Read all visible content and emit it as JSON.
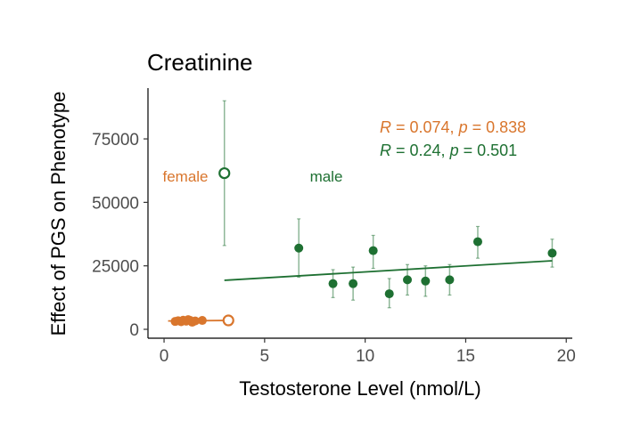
{
  "chart_data": {
    "type": "scatter",
    "title": "Creatinine",
    "xlabel": "Testosterone Level (nmol/L)",
    "ylabel": "Effect of PGS on Phenotype",
    "xlim": [
      -0.8,
      20.3
    ],
    "ylim": [
      -3500,
      95000
    ],
    "x_ticks": [
      0,
      5,
      10,
      15,
      20
    ],
    "y_ticks": [
      0,
      25000,
      50000,
      75000
    ],
    "grid": false,
    "colors": {
      "female": "#d9762d",
      "male": "#1e7032"
    },
    "series": [
      {
        "name": "female",
        "color": "#d9762d",
        "points": [
          {
            "x": 0.55,
            "y": 3100,
            "lo": 2600,
            "hi": 3600
          },
          {
            "x": 0.7,
            "y": 3400,
            "lo": 2900,
            "hi": 3900
          },
          {
            "x": 0.85,
            "y": 3000,
            "lo": 2500,
            "hi": 3500
          },
          {
            "x": 0.95,
            "y": 3600,
            "lo": 3000,
            "hi": 4200
          },
          {
            "x": 1.1,
            "y": 3200,
            "lo": 2700,
            "hi": 3700
          },
          {
            "x": 1.2,
            "y": 3800,
            "lo": 3200,
            "hi": 4400
          },
          {
            "x": 1.3,
            "y": 3500,
            "lo": 2900,
            "hi": 4100
          },
          {
            "x": 1.4,
            "y": 2800,
            "lo": 2300,
            "hi": 3300
          },
          {
            "x": 1.55,
            "y": 3300,
            "lo": 2800,
            "hi": 3800
          },
          {
            "x": 1.9,
            "y": 3500,
            "lo": 3000,
            "hi": 4000
          }
        ],
        "outlier": {
          "x": 3.2,
          "y": 3500,
          "lo": 3000,
          "hi": 4000
        },
        "fit": {
          "x0": 0.2,
          "y0": 3300,
          "x1": 3.2,
          "y1": 3500
        }
      },
      {
        "name": "male",
        "color": "#1e7032",
        "points": [
          {
            "x": 6.7,
            "y": 32000,
            "lo": 20500,
            "hi": 43500
          },
          {
            "x": 8.4,
            "y": 18000,
            "lo": 12500,
            "hi": 23500
          },
          {
            "x": 9.4,
            "y": 18000,
            "lo": 11500,
            "hi": 24500
          },
          {
            "x": 10.4,
            "y": 31000,
            "lo": 24000,
            "hi": 37000
          },
          {
            "x": 11.2,
            "y": 14000,
            "lo": 8500,
            "hi": 20000
          },
          {
            "x": 12.1,
            "y": 19500,
            "lo": 13500,
            "hi": 25500
          },
          {
            "x": 13.0,
            "y": 19000,
            "lo": 13000,
            "hi": 25000
          },
          {
            "x": 14.2,
            "y": 19500,
            "lo": 13500,
            "hi": 25500
          },
          {
            "x": 15.6,
            "y": 34500,
            "lo": 28000,
            "hi": 40500
          },
          {
            "x": 19.3,
            "y": 30000,
            "lo": 24500,
            "hi": 35500
          }
        ],
        "outlier": {
          "x": 3.0,
          "y": 61500,
          "lo": 33000,
          "hi": 90000
        },
        "fit": {
          "x0": 3.0,
          "y0": 19300,
          "x1": 19.3,
          "y1": 27000
        }
      }
    ],
    "group_labels": [
      {
        "text": "female",
        "x": 1.0,
        "y": 58500,
        "series": "female"
      },
      {
        "text": "male",
        "x": 8.0,
        "y": 58500,
        "series": "male"
      }
    ],
    "annotations": [
      {
        "series": "female",
        "r_label": "R",
        "r_value": " = 0.074, ",
        "p_label": "p",
        "p_value": " = 0.838"
      },
      {
        "series": "male",
        "r_label": "R",
        "r_value": " = 0.24, ",
        "p_label": "p",
        "p_value": " = 0.501"
      }
    ]
  }
}
